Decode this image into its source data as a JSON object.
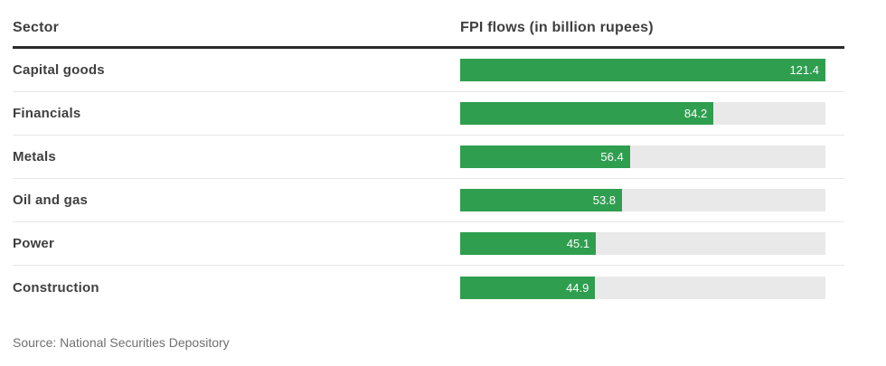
{
  "header": {
    "sector_label": "Sector",
    "flows_label": "FPI flows (in billion rupees)"
  },
  "source": "Source: National Securities Depository",
  "colors": {
    "bar_fill": "#2f9e4f",
    "bar_track": "#e9e9e9",
    "header_rule": "#2b2b2b",
    "text": "#3f3f3f",
    "source_text": "#6f6f6f",
    "row_divider": "#e7e7e7",
    "bar_value_text": "#ffffff"
  },
  "chart_data": {
    "type": "bar",
    "orientation": "horizontal",
    "title": "FPI flows (in billion rupees)",
    "xlabel": "Sector",
    "ylabel": "",
    "categories": [
      "Capital goods",
      "Financials",
      "Metals",
      "Oil and gas",
      "Power",
      "Construction"
    ],
    "values": [
      121.4,
      84.2,
      56.4,
      53.8,
      45.1,
      44.9
    ],
    "value_axis_max": 121.4,
    "value_labels_inside_bar": true,
    "grid": false,
    "legend": false
  }
}
